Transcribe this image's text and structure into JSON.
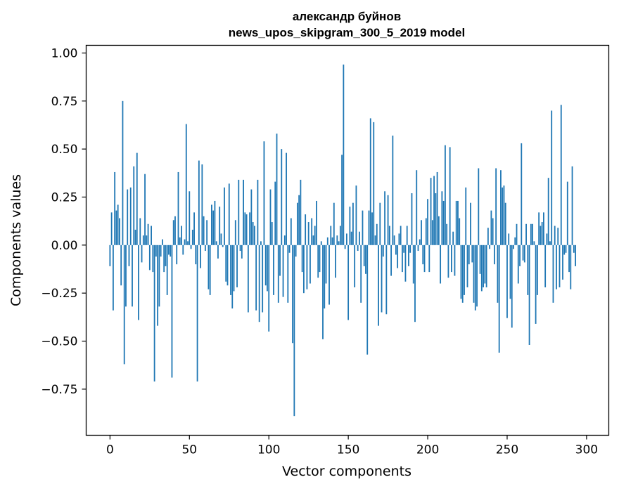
{
  "chart_data": {
    "type": "bar",
    "title_line1": "александр буйнов",
    "title_line2": "news_upos_skipgram_300_5_2019 model",
    "xlabel": "Vector components",
    "ylabel": "Components values",
    "xlim": [
      -15,
      314
    ],
    "ylim": [
      -0.99,
      1.04
    ],
    "xticks": [
      0,
      50,
      100,
      150,
      200,
      250,
      300
    ],
    "yticks": [
      1.0,
      0.75,
      0.5,
      0.25,
      0.0,
      -0.25,
      -0.5,
      -0.75
    ],
    "ytick_labels": [
      "1.00",
      "0.75",
      "0.50",
      "0.25",
      "0.00",
      "−0.25",
      "−0.50",
      "−0.75"
    ],
    "bar_color": "#1f77b4",
    "grid": false,
    "legend": "none",
    "values": [
      -0.11,
      0.17,
      -0.34,
      0.38,
      0.18,
      0.21,
      0.14,
      -0.21,
      0.75,
      -0.62,
      -0.32,
      0.29,
      -0.11,
      0.3,
      -0.32,
      0.41,
      0.08,
      0.48,
      -0.39,
      0.14,
      -0.09,
      0.05,
      0.37,
      0.05,
      0.11,
      -0.13,
      0.1,
      -0.14,
      -0.71,
      -0.06,
      -0.42,
      -0.32,
      -0.06,
      0.03,
      -0.14,
      -0.11,
      -0.26,
      -0.05,
      -0.06,
      -0.69,
      0.13,
      0.15,
      -0.1,
      0.38,
      0.04,
      0.1,
      -0.05,
      0.03,
      0.63,
      0.02,
      0.28,
      -0.02,
      0.08,
      0.17,
      -0.1,
      -0.71,
      0.44,
      -0.12,
      0.42,
      0.15,
      -0.03,
      0.13,
      -0.23,
      -0.26,
      0.21,
      0.18,
      0.23,
      0.02,
      -0.07,
      0.2,
      0.06,
      -0.01,
      0.3,
      -0.19,
      -0.21,
      0.32,
      -0.26,
      -0.33,
      -0.24,
      0.13,
      -0.22,
      0.34,
      -0.03,
      -0.07,
      0.34,
      0.17,
      0.16,
      -0.35,
      0.17,
      0.29,
      0.12,
      0.1,
      -0.34,
      0.34,
      -0.4,
      0.02,
      -0.35,
      0.54,
      -0.21,
      -0.24,
      -0.45,
      0.29,
      0.12,
      -0.26,
      0.33,
      0.58,
      -0.3,
      -0.16,
      0.5,
      -0.27,
      0.05,
      0.48,
      -0.3,
      -0.04,
      0.14,
      -0.51,
      -0.89,
      -0.06,
      0.22,
      0.26,
      0.34,
      -0.14,
      -0.25,
      0.16,
      -0.23,
      0.12,
      -0.2,
      0.14,
      0.05,
      0.1,
      0.23,
      -0.17,
      -0.14,
      0.02,
      -0.49,
      -0.33,
      -0.2,
      0.04,
      -0.31,
      0.1,
      0.04,
      0.22,
      -0.17,
      0.05,
      0.02,
      0.1,
      0.47,
      0.94,
      -0.02,
      0.06,
      -0.39,
      0.2,
      0.07,
      0.22,
      -0.22,
      0.31,
      -0.03,
      0.07,
      -0.3,
      0.18,
      -0.11,
      -0.15,
      -0.57,
      0.18,
      0.66,
      0.17,
      0.64,
      0.05,
      0.11,
      -0.42,
      0.22,
      -0.35,
      -0.06,
      0.28,
      -0.36,
      0.26,
      0.1,
      -0.16,
      0.57,
      0.05,
      -0.05,
      -0.12,
      0.06,
      0.1,
      -0.14,
      -0.04,
      -0.19,
      0.1,
      -0.11,
      -0.04,
      0.27,
      -0.2,
      -0.4,
      0.39,
      -0.03,
      0.03,
      0.13,
      -0.1,
      -0.14,
      0.14,
      0.24,
      -0.14,
      0.35,
      0.13,
      0.36,
      0.27,
      0.38,
      0.15,
      -0.2,
      0.28,
      0.23,
      0.52,
      0.11,
      -0.17,
      0.51,
      -0.14,
      0.07,
      -0.16,
      0.23,
      0.23,
      0.14,
      -0.28,
      -0.3,
      -0.26,
      0.3,
      -0.22,
      -0.1,
      0.22,
      -0.09,
      -0.3,
      -0.34,
      -0.32,
      0.4,
      -0.15,
      -0.24,
      -0.22,
      -0.2,
      -0.22,
      0.09,
      -0.02,
      0.18,
      0.14,
      -0.1,
      0.4,
      -0.3,
      -0.56,
      0.39,
      0.3,
      0.31,
      0.22,
      -0.38,
      0.06,
      -0.28,
      -0.43,
      -0.02,
      0.04,
      0.11,
      -0.2,
      -0.11,
      0.53,
      -0.08,
      -0.09,
      0.11,
      -0.26,
      -0.52,
      0.11,
      0.11,
      0.02,
      -0.41,
      -0.26,
      0.17,
      0.1,
      0.12,
      0.17,
      -0.22,
      0.06,
      0.35,
      0.02,
      0.7,
      -0.3,
      0.1,
      -0.23,
      0.09,
      -0.22,
      0.73,
      -0.18,
      -0.05,
      -0.04,
      0.33,
      -0.14,
      -0.23,
      0.41,
      -0.04,
      -0.11
    ]
  }
}
